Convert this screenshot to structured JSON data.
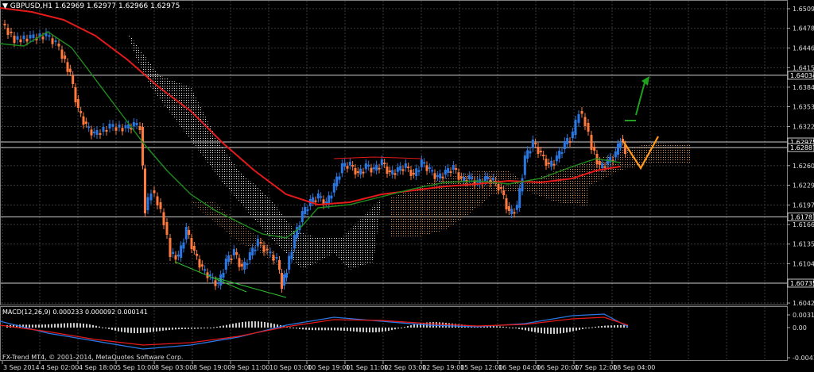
{
  "window": {
    "title": "GBPUSD,H1",
    "ohlc": "1.62969 1.62977 1.62966 1.62975",
    "copyright": "FX-Trend MT4, © 2001-2014, MetaQuotes Software Corp."
  },
  "chart_data": {
    "type": "candlestick",
    "symbol": "GBPUSD",
    "timeframe": "H1",
    "price_axis_labels": [
      "1.65090",
      "1.64780",
      "1.64465",
      "1.64155",
      "1.63845",
      "1.63535",
      "1.63220",
      "1.62600",
      "1.62290",
      "1.61975",
      "1.61665",
      "1.61355",
      "1.61045",
      "1.60420"
    ],
    "highlighted_levels": [
      {
        "label": "1.64034",
        "value": 1.64034
      },
      {
        "label": "1.62975",
        "value": 1.62975
      },
      {
        "label": "1.62887",
        "value": 1.62887
      },
      {
        "label": "1.61787",
        "value": 1.61787
      },
      {
        "label": "1.60735",
        "value": 1.60735
      }
    ],
    "time_axis_labels": [
      "3 Sep 2014",
      "4 Sep 02:00",
      "4 Sep 18:00",
      "5 Sep 10:00",
      "8 Sep 03:00",
      "8 Sep 19:00",
      "9 Sep 11:00",
      "10 Sep 03:00",
      "10 Sep 19:00",
      "11 Sep 11:00",
      "12 Sep 03:00",
      "12 Sep 19:00",
      "15 Sep 12:00",
      "16 Sep 04:00",
      "16 Sep 20:00",
      "17 Sep 12:00",
      "18 Sep 04:00"
    ],
    "indicator": {
      "name": "MACD(12,26,9)",
      "values": "0.000233 0.000092 0.000141",
      "axis_labels": [
        "0.003121",
        "0.00",
        "-0.004186"
      ]
    },
    "grid": true,
    "colors": {
      "background": "#000000",
      "bull_candle": "#2a78e4",
      "bear_candle": "#ff7a3c",
      "red_ma": "#e41a1a",
      "green_ma": "#1f8c1f",
      "cloud_light": "#ffffff",
      "cloud_orange": "#f4a460",
      "forecast": "#ff9a1f",
      "arrow": "#1fa01f"
    }
  }
}
